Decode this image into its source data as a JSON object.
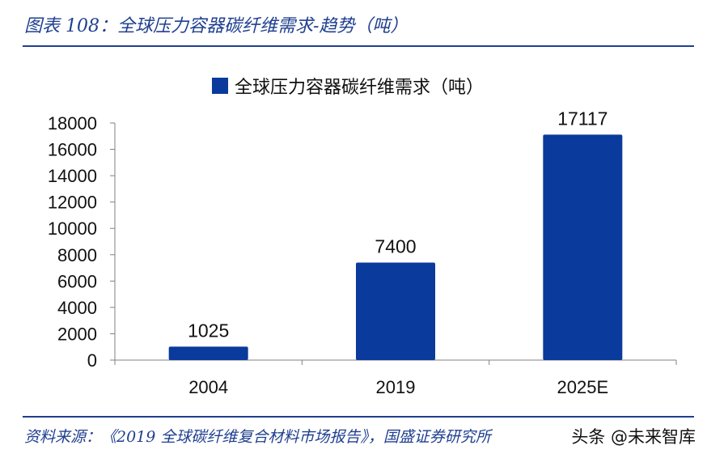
{
  "caption": "图表 108：全球压力容器碳纤维需求-趋势（吨）",
  "source": "资料来源：《2019 全球碳纤维复合材料市场报告》，国盛证券研究所",
  "watermark": "头条 @未来智库",
  "chart_data": {
    "type": "bar",
    "categories": [
      "2004",
      "2019",
      "2025E"
    ],
    "series": [
      {
        "name": "全球压力容器碳纤维需求（吨）",
        "values": [
          1025,
          7400,
          17117
        ],
        "color": "#0a3a9b"
      }
    ],
    "data_labels": [
      "1025",
      "7400",
      "17117"
    ],
    "yticks": [
      0,
      2000,
      4000,
      6000,
      8000,
      10000,
      12000,
      14000,
      16000,
      18000
    ],
    "ylim": [
      0,
      18000
    ],
    "title": "",
    "xlabel": "",
    "ylabel": "",
    "legend_position": "top-center"
  }
}
